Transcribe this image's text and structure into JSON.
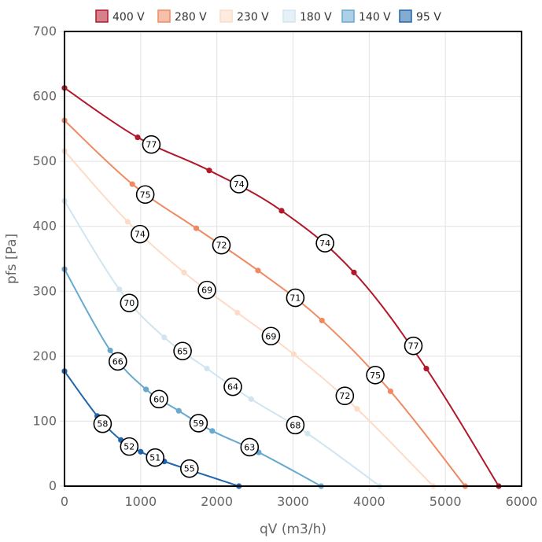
{
  "chart_data": {
    "type": "line",
    "title": "",
    "xlabel": "qV (m3/h)",
    "ylabel": "pfs [Pa]",
    "xlim": [
      0,
      6000
    ],
    "ylim": [
      0,
      700
    ],
    "xticks": [
      0,
      1000,
      2000,
      3000,
      4000,
      5000,
      6000
    ],
    "yticks": [
      0,
      100,
      200,
      300,
      400,
      500,
      600,
      700
    ],
    "xtick_labels": [
      "0",
      "1000",
      "2000",
      "3000",
      "4000",
      "5000",
      "6000"
    ],
    "ytick_labels": [
      "0",
      "100",
      "200",
      "300",
      "400",
      "500",
      "600",
      "700"
    ],
    "grid": true,
    "legend_position": "top",
    "series": [
      {
        "name": "400 V",
        "color": "#b2182b",
        "points": [
          [
            0,
            613
          ],
          [
            960,
            537
          ],
          [
            1900,
            486
          ],
          [
            2850,
            424
          ],
          [
            3800,
            329
          ],
          [
            4750,
            181
          ],
          [
            5700,
            0
          ]
        ],
        "labels": [
          {
            "x": 1140,
            "y": 526,
            "text": "77"
          },
          {
            "x": 2290,
            "y": 465,
            "text": "74"
          },
          {
            "x": 3420,
            "y": 374,
            "text": "74"
          },
          {
            "x": 4580,
            "y": 216,
            "text": "77"
          }
        ]
      },
      {
        "name": "280 V",
        "color": "#ef8a62",
        "points": [
          [
            0,
            563
          ],
          [
            890,
            465
          ],
          [
            1730,
            397
          ],
          [
            2540,
            332
          ],
          [
            3380,
            255
          ],
          [
            4280,
            146
          ],
          [
            5260,
            0
          ]
        ],
        "labels": [
          {
            "x": 1060,
            "y": 449,
            "text": "75"
          },
          {
            "x": 2060,
            "y": 371,
            "text": "72"
          },
          {
            "x": 3030,
            "y": 290,
            "text": "71"
          },
          {
            "x": 4080,
            "y": 171,
            "text": "75"
          }
        ]
      },
      {
        "name": "230 V",
        "color": "#fddbc7",
        "points": [
          [
            0,
            516
          ],
          [
            830,
            407
          ],
          [
            1570,
            329
          ],
          [
            2270,
            267
          ],
          [
            3010,
            203
          ],
          [
            3840,
            119
          ],
          [
            4840,
            0
          ]
        ],
        "labels": [
          {
            "x": 990,
            "y": 388,
            "text": "74"
          },
          {
            "x": 1870,
            "y": 302,
            "text": "69"
          },
          {
            "x": 2710,
            "y": 231,
            "text": "69"
          },
          {
            "x": 3680,
            "y": 139,
            "text": "72"
          }
        ]
      },
      {
        "name": "180 V",
        "color": "#d1e5f0",
        "points": [
          [
            0,
            439
          ],
          [
            720,
            303
          ],
          [
            1310,
            229
          ],
          [
            1870,
            181
          ],
          [
            2450,
            134
          ],
          [
            3190,
            81
          ],
          [
            4140,
            0
          ]
        ],
        "labels": [
          {
            "x": 850,
            "y": 282,
            "text": "70"
          },
          {
            "x": 1550,
            "y": 208,
            "text": "65"
          },
          {
            "x": 2210,
            "y": 153,
            "text": "64"
          },
          {
            "x": 3030,
            "y": 94,
            "text": "68"
          }
        ]
      },
      {
        "name": "140 V",
        "color": "#67a9cf",
        "points": [
          [
            0,
            334
          ],
          [
            600,
            209
          ],
          [
            1070,
            149
          ],
          [
            1500,
            116
          ],
          [
            1940,
            85
          ],
          [
            2550,
            52
          ],
          [
            3370,
            0
          ]
        ],
        "labels": [
          {
            "x": 700,
            "y": 192,
            "text": "66"
          },
          {
            "x": 1240,
            "y": 134,
            "text": "60"
          },
          {
            "x": 1760,
            "y": 97,
            "text": "59"
          },
          {
            "x": 2430,
            "y": 60,
            "text": "63"
          }
        ]
      },
      {
        "name": "95 V",
        "color": "#2166ac",
        "points": [
          [
            0,
            177
          ],
          [
            430,
            108
          ],
          [
            740,
            71
          ],
          [
            1000,
            53
          ],
          [
            1310,
            38
          ],
          [
            2290,
            0
          ]
        ],
        "labels": [
          {
            "x": 500,
            "y": 96,
            "text": "58"
          },
          {
            "x": 850,
            "y": 61,
            "text": "52"
          },
          {
            "x": 1190,
            "y": 44,
            "text": "51"
          },
          {
            "x": 1640,
            "y": 27,
            "text": "55"
          }
        ]
      }
    ]
  }
}
